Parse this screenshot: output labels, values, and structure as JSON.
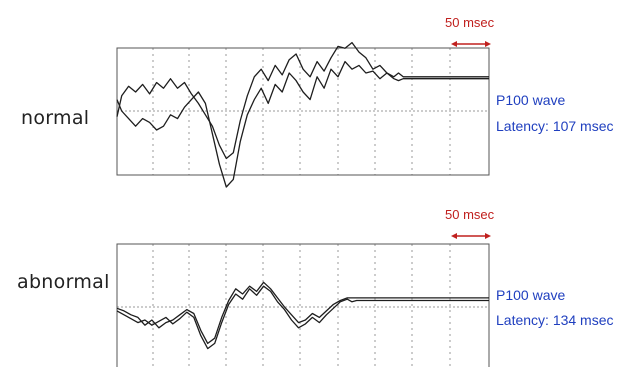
{
  "colors": {
    "trace": "#1e1e1e",
    "grid": "#9a9a9a",
    "frame": "#555555",
    "scale_bar": "#c0201e",
    "annotation": "#1f3fbf"
  },
  "chart_data": [
    {
      "type": "line",
      "label": "normal",
      "scale_bar": "50 msec",
      "annotation": {
        "wave": "P100 wave",
        "latency": "Latency: 107 msec"
      },
      "grid": true,
      "series": [
        {
          "points": [
            [
              0,
              -3
            ],
            [
              2,
              8
            ],
            [
              5,
              13
            ],
            [
              8,
              10
            ],
            [
              11,
              14
            ],
            [
              14,
              9
            ],
            [
              17,
              15
            ],
            [
              20,
              12
            ],
            [
              23,
              17
            ],
            [
              26,
              12
            ],
            [
              29,
              15
            ],
            [
              32,
              9
            ],
            [
              35,
              4
            ],
            [
              38,
              -2
            ],
            [
              41,
              -8
            ],
            [
              44,
              -18
            ],
            [
              47,
              -25
            ],
            [
              50,
              -22
            ],
            [
              53,
              -5
            ],
            [
              56,
              8
            ],
            [
              59,
              18
            ],
            [
              62,
              22
            ],
            [
              65,
              16
            ],
            [
              68,
              24
            ],
            [
              71,
              19
            ],
            [
              74,
              27
            ],
            [
              77,
              30
            ],
            [
              80,
              22
            ],
            [
              83,
              18
            ],
            [
              86,
              26
            ],
            [
              89,
              21
            ],
            [
              92,
              28
            ],
            [
              95,
              34
            ],
            [
              98,
              33
            ],
            [
              101,
              36
            ],
            [
              104,
              31
            ],
            [
              107,
              28
            ],
            [
              110,
              22
            ],
            [
              113,
              24
            ],
            [
              116,
              20
            ],
            [
              119,
              18
            ],
            [
              121,
              20
            ],
            [
              123,
              18
            ],
            [
              127,
              18
            ],
            [
              131,
              18
            ],
            [
              135,
              18
            ],
            [
              139,
              18
            ],
            [
              143,
              18
            ],
            [
              147,
              18
            ]
          ]
        },
        {
          "points": [
            [
              0,
              6
            ],
            [
              2,
              0
            ],
            [
              5,
              -4
            ],
            [
              8,
              -8
            ],
            [
              11,
              -4
            ],
            [
              14,
              -6
            ],
            [
              17,
              -10
            ],
            [
              20,
              -8
            ],
            [
              23,
              -2
            ],
            [
              26,
              -4
            ],
            [
              29,
              2
            ],
            [
              32,
              6
            ],
            [
              35,
              10
            ],
            [
              38,
              4
            ],
            [
              41,
              -12
            ],
            [
              44,
              -28
            ],
            [
              47,
              -40
            ],
            [
              50,
              -36
            ],
            [
              53,
              -16
            ],
            [
              56,
              -2
            ],
            [
              59,
              6
            ],
            [
              62,
              12
            ],
            [
              65,
              4
            ],
            [
              68,
              14
            ],
            [
              71,
              10
            ],
            [
              74,
              20
            ],
            [
              77,
              16
            ],
            [
              80,
              10
            ],
            [
              83,
              6
            ],
            [
              86,
              18
            ],
            [
              89,
              12
            ],
            [
              92,
              22
            ],
            [
              95,
              18
            ],
            [
              98,
              26
            ],
            [
              101,
              22
            ],
            [
              104,
              24
            ],
            [
              107,
              20
            ],
            [
              110,
              21
            ],
            [
              113,
              17
            ],
            [
              116,
              20
            ],
            [
              119,
              17
            ],
            [
              121,
              16
            ],
            [
              123,
              17
            ],
            [
              127,
              17
            ],
            [
              131,
              17
            ],
            [
              135,
              17
            ],
            [
              139,
              17
            ],
            [
              143,
              17
            ],
            [
              147,
              17
            ]
          ]
        }
      ]
    },
    {
      "type": "line",
      "label": "abnormal",
      "scale_bar": "50 msec",
      "annotation": {
        "wave": "P100 wave",
        "latency": "Latency: 134 msec"
      },
      "grid": true,
      "series": [
        {
          "points": [
            [
              0,
              -3
            ],
            [
              3,
              -6
            ],
            [
              6,
              -9
            ],
            [
              9,
              -12
            ],
            [
              12,
              -10
            ],
            [
              15,
              -14
            ],
            [
              18,
              -11
            ],
            [
              21,
              -8
            ],
            [
              24,
              -13
            ],
            [
              27,
              -9
            ],
            [
              30,
              -4
            ],
            [
              33,
              -8
            ],
            [
              36,
              -22
            ],
            [
              39,
              -32
            ],
            [
              42,
              -28
            ],
            [
              45,
              -12
            ],
            [
              48,
              2
            ],
            [
              51,
              10
            ],
            [
              54,
              6
            ],
            [
              57,
              14
            ],
            [
              60,
              9
            ],
            [
              63,
              16
            ],
            [
              66,
              12
            ],
            [
              69,
              4
            ],
            [
              72,
              -2
            ],
            [
              75,
              -10
            ],
            [
              78,
              -16
            ],
            [
              81,
              -13
            ],
            [
              84,
              -8
            ],
            [
              87,
              -12
            ],
            [
              90,
              -6
            ],
            [
              93,
              -1
            ],
            [
              96,
              4
            ],
            [
              99,
              6
            ],
            [
              101,
              4
            ],
            [
              103,
              5
            ],
            [
              107,
              5
            ],
            [
              111,
              5
            ],
            [
              115,
              5
            ],
            [
              119,
              5
            ],
            [
              123,
              5
            ],
            [
              127,
              5
            ],
            [
              131,
              5
            ],
            [
              135,
              5
            ],
            [
              139,
              5
            ],
            [
              143,
              5
            ],
            [
              147,
              5
            ]
          ]
        },
        {
          "points": [
            [
              0,
              -1
            ],
            [
              3,
              -3
            ],
            [
              6,
              -6
            ],
            [
              9,
              -8
            ],
            [
              12,
              -14
            ],
            [
              15,
              -10
            ],
            [
              18,
              -16
            ],
            [
              21,
              -12
            ],
            [
              24,
              -10
            ],
            [
              27,
              -6
            ],
            [
              30,
              -2
            ],
            [
              33,
              -5
            ],
            [
              36,
              -18
            ],
            [
              39,
              -28
            ],
            [
              42,
              -24
            ],
            [
              45,
              -8
            ],
            [
              48,
              5
            ],
            [
              51,
              14
            ],
            [
              54,
              10
            ],
            [
              57,
              16
            ],
            [
              60,
              12
            ],
            [
              63,
              19
            ],
            [
              66,
              14
            ],
            [
              69,
              7
            ],
            [
              72,
              0
            ],
            [
              75,
              -6
            ],
            [
              78,
              -12
            ],
            [
              81,
              -10
            ],
            [
              84,
              -5
            ],
            [
              87,
              -8
            ],
            [
              90,
              -3
            ],
            [
              93,
              2
            ],
            [
              96,
              5
            ],
            [
              99,
              7
            ],
            [
              101,
              7
            ],
            [
              103,
              7
            ],
            [
              107,
              7
            ],
            [
              111,
              7
            ],
            [
              115,
              7
            ],
            [
              119,
              7
            ],
            [
              123,
              7
            ],
            [
              127,
              7
            ],
            [
              131,
              7
            ],
            [
              135,
              7
            ],
            [
              139,
              7
            ],
            [
              143,
              7
            ],
            [
              147,
              7
            ]
          ]
        }
      ]
    }
  ]
}
